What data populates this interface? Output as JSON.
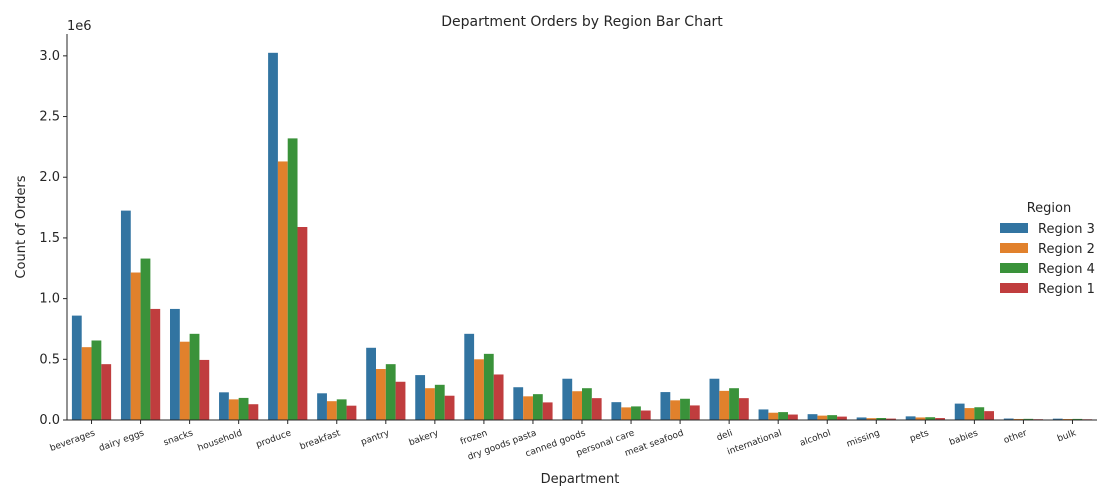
{
  "chart_data": {
    "type": "bar",
    "title": "Department Orders by Region Bar Chart",
    "xlabel": "Department",
    "ylabel": "Count of Orders",
    "offset_label": "1e6",
    "ylim": [
      0,
      3180000
    ],
    "yticks": [
      0,
      500000,
      1000000,
      1500000,
      2000000,
      2500000,
      3000000
    ],
    "ytick_labels": [
      "0.0",
      "0.5",
      "1.0",
      "1.5",
      "2.0",
      "2.5",
      "3.0"
    ],
    "grid": false,
    "legend": {
      "title": "Region",
      "placement": "right"
    },
    "categories": [
      "beverages",
      "dairy eggs",
      "snacks",
      "household",
      "produce",
      "breakfast",
      "pantry",
      "bakery",
      "frozen",
      "dry goods pasta",
      "canned goods",
      "personal care",
      "meat seafood",
      "deli",
      "international",
      "alcohol",
      "missing",
      "pets",
      "babies",
      "other",
      "bulk"
    ],
    "series": [
      {
        "name": "Region 3",
        "color": "#3274a1",
        "values": [
          860000,
          1725000,
          915000,
          228000,
          3025000,
          220000,
          595000,
          370000,
          710000,
          270000,
          340000,
          147000,
          230000,
          340000,
          87000,
          48000,
          21000,
          30000,
          135000,
          12000,
          11000
        ]
      },
      {
        "name": "Region 2",
        "color": "#e1812c",
        "values": [
          600000,
          1215000,
          645000,
          170000,
          2130000,
          155000,
          420000,
          262000,
          500000,
          195000,
          237000,
          104000,
          162000,
          240000,
          60000,
          36000,
          15000,
          21000,
          98000,
          8500,
          8000
        ]
      },
      {
        "name": "Region 4",
        "color": "#3a923a",
        "values": [
          655000,
          1330000,
          710000,
          182000,
          2320000,
          170000,
          460000,
          290000,
          545000,
          213000,
          262000,
          112000,
          175000,
          262000,
          65000,
          40000,
          16500,
          23000,
          105000,
          9500,
          9000
        ]
      },
      {
        "name": "Region 1",
        "color": "#c03d3e",
        "values": [
          460000,
          915000,
          495000,
          130000,
          1590000,
          118000,
          315000,
          200000,
          375000,
          145000,
          180000,
          78000,
          120000,
          180000,
          45000,
          28000,
          11500,
          16000,
          73000,
          6500,
          6000
        ]
      }
    ]
  }
}
